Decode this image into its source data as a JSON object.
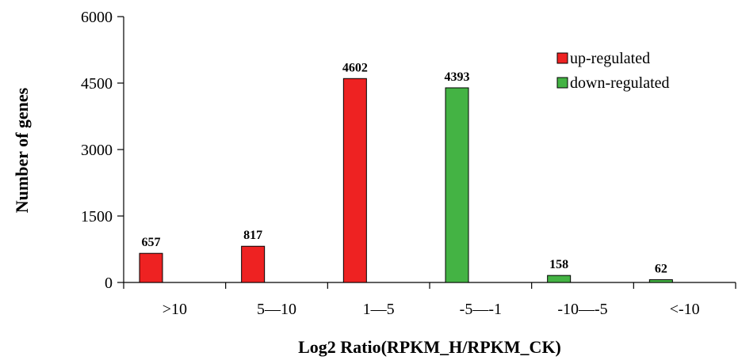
{
  "chart_data": {
    "type": "bar",
    "categories": [
      ">10",
      "5—10",
      "1—5",
      "-5—-1",
      "-10—-5",
      "<-10"
    ],
    "series": [
      {
        "name": "up-regulated",
        "color": "#ee2222",
        "values": [
          657,
          817,
          4602,
          null,
          null,
          null
        ]
      },
      {
        "name": "down-regulated",
        "color": "#44b344",
        "values": [
          null,
          null,
          null,
          4393,
          158,
          62
        ]
      }
    ],
    "data_labels": [
      "657",
      "817",
      "4602",
      "4393",
      "158",
      "62"
    ],
    "xlabel": "Log2 Ratio(RPKM_H/RPKM_CK)",
    "ylabel": "Number of genes",
    "ylim": [
      0,
      6000
    ],
    "yticks": [
      0,
      1500,
      3000,
      4500,
      6000
    ],
    "legend_position": "top-right",
    "grid": false
  }
}
